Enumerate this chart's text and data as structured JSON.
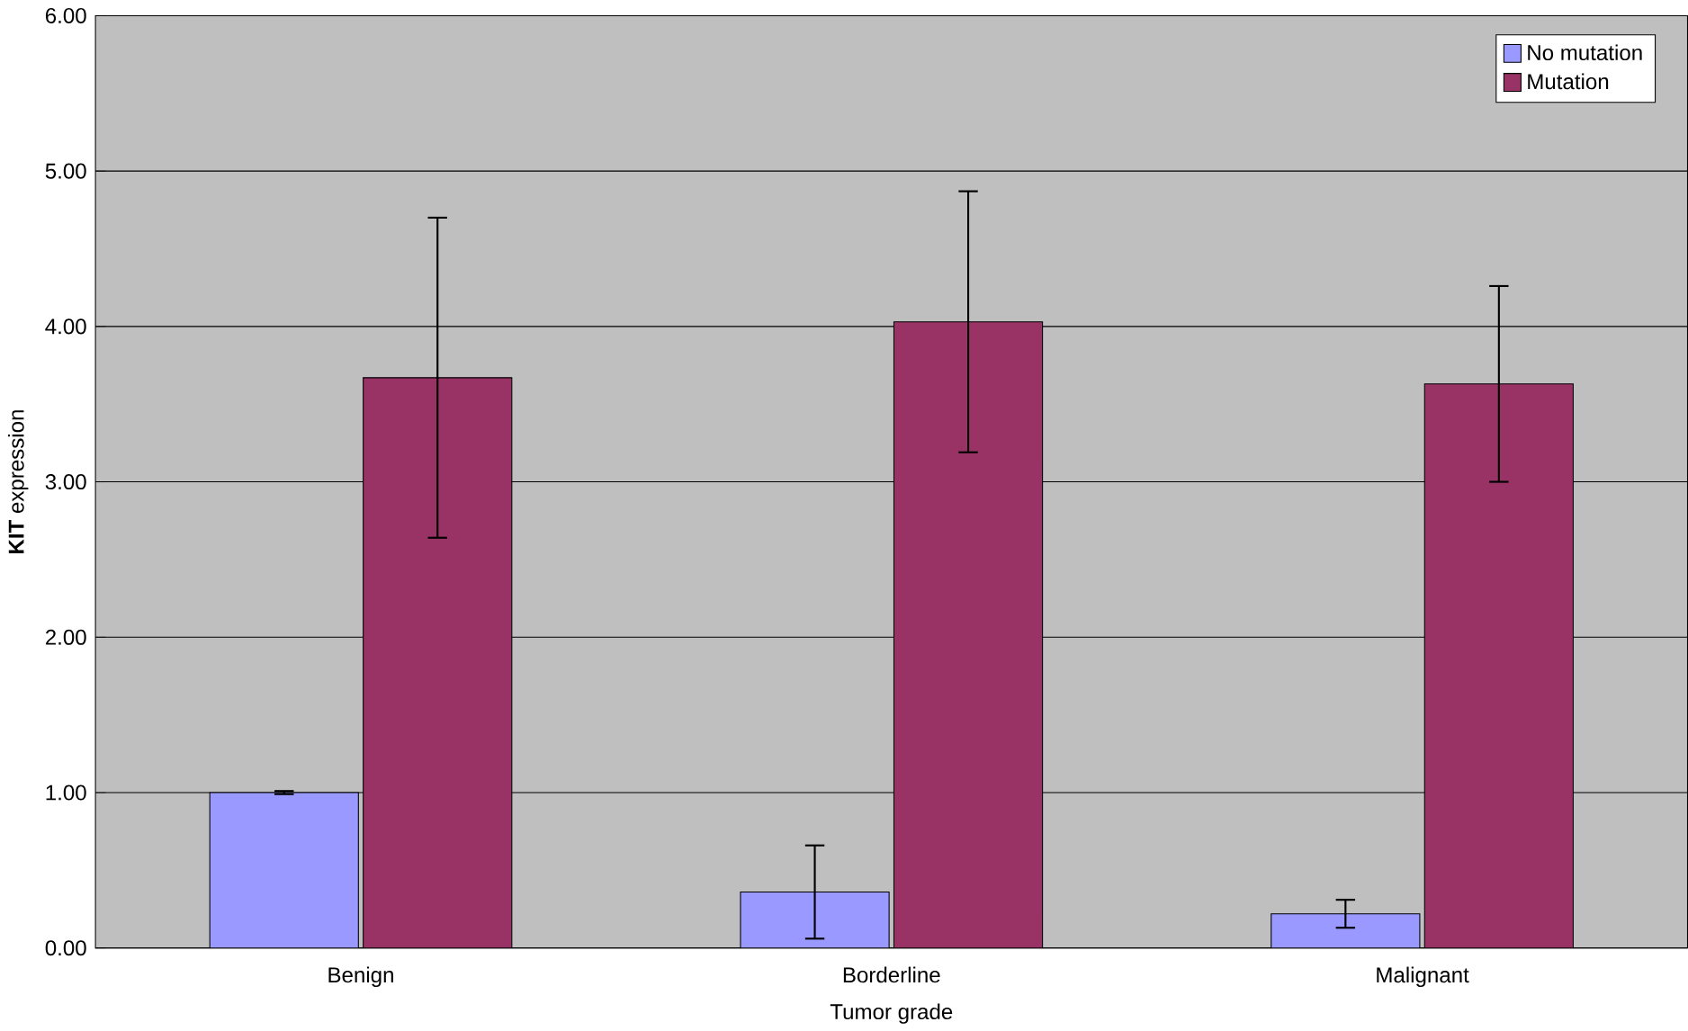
{
  "chart_data": {
    "type": "bar",
    "xlabel": "Tumor grade",
    "ylabel": "**KIT** expression",
    "categories": [
      "Benign",
      "Borderline",
      "Malignant"
    ],
    "series": [
      {
        "name": "No mutation",
        "color": "#9999ff",
        "values": [
          1.0,
          0.36,
          0.22
        ],
        "errors": [
          0.01,
          0.3,
          0.09
        ]
      },
      {
        "name": "Mutation",
        "color": "#993366",
        "values": [
          3.67,
          4.03,
          3.63
        ],
        "errors": [
          1.03,
          0.84,
          0.63
        ]
      }
    ],
    "ylim": [
      0,
      6
    ],
    "yticks": [
      {
        "value": 0,
        "label": "0.00"
      },
      {
        "value": 1,
        "label": "1.00"
      },
      {
        "value": 2,
        "label": "2.00"
      },
      {
        "value": 3,
        "label": "3.00"
      },
      {
        "value": 4,
        "label": "4.00"
      },
      {
        "value": 5,
        "label": "5.00"
      },
      {
        "value": 6,
        "label": "6.00"
      }
    ],
    "grid": "y",
    "legend": "top right"
  }
}
